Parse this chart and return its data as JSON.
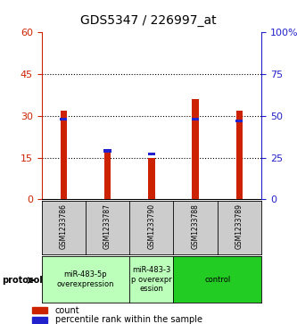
{
  "title": "GDS5347 / 226997_at",
  "samples": [
    "GSM1233786",
    "GSM1233787",
    "GSM1233790",
    "GSM1233788",
    "GSM1233789"
  ],
  "red_values": [
    32,
    17,
    15,
    36,
    32
  ],
  "blue_values_pct": [
    48,
    29,
    27,
    48,
    47
  ],
  "left_ylim": [
    0,
    60
  ],
  "left_yticks": [
    0,
    15,
    30,
    45,
    60
  ],
  "right_ylim": [
    0,
    100
  ],
  "right_yticks": [
    0,
    25,
    50,
    75,
    100
  ],
  "right_yticklabels": [
    "0",
    "25",
    "50",
    "75",
    "100%"
  ],
  "red_color": "#cc2200",
  "blue_color": "#2222cc",
  "bar_bg_color": "#cccccc",
  "protocol_groups": [
    {
      "label": "miR-483-5p\noverexpression",
      "start": 0,
      "end": 2,
      "color": "#bbffbb"
    },
    {
      "label": "miR-483-3\np overexpr\nession",
      "start": 2,
      "end": 3,
      "color": "#bbffbb"
    },
    {
      "label": "control",
      "start": 3,
      "end": 5,
      "color": "#22cc22"
    }
  ],
  "title_fontsize": 10,
  "tick_fontsize": 8,
  "bar_width": 0.15
}
